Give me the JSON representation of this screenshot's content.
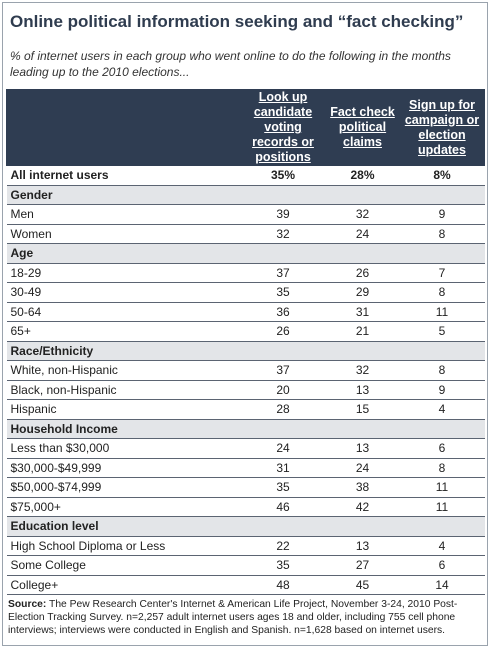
{
  "title": "Online political information seeking and “fact checking”",
  "subtitle": "% of internet users in each group who went online to do the following in the months leading up to the 2010 elections...",
  "columns": [
    "Look up candidate voting records or positions",
    "Fact check political claims",
    "Sign up for campaign or election updates"
  ],
  "all_row": {
    "label": "All internet users",
    "values": [
      "35%",
      "28%",
      "8%"
    ]
  },
  "sections": [
    {
      "heading": "Gender",
      "rows": [
        {
          "label": "Men",
          "values": [
            "39",
            "32",
            "9"
          ]
        },
        {
          "label": "Women",
          "values": [
            "32",
            "24",
            "8"
          ]
        }
      ]
    },
    {
      "heading": "Age",
      "rows": [
        {
          "label": "18-29",
          "values": [
            "37",
            "26",
            "7"
          ]
        },
        {
          "label": "30-49",
          "values": [
            "35",
            "29",
            "8"
          ]
        },
        {
          "label": "50-64",
          "values": [
            "36",
            "31",
            "11"
          ]
        },
        {
          "label": "65+",
          "values": [
            "26",
            "21",
            "5"
          ]
        }
      ]
    },
    {
      "heading": "Race/Ethnicity",
      "rows": [
        {
          "label": "White, non-Hispanic",
          "values": [
            "37",
            "32",
            "8"
          ]
        },
        {
          "label": "Black, non-Hispanic",
          "values": [
            "20",
            "13",
            "9"
          ]
        },
        {
          "label": "Hispanic",
          "values": [
            "28",
            "15",
            "4"
          ]
        }
      ]
    },
    {
      "heading": "Household Income",
      "rows": [
        {
          "label": "Less than $30,000",
          "values": [
            "24",
            "13",
            "6"
          ]
        },
        {
          "label": "$30,000-$49,999",
          "values": [
            "31",
            "24",
            "8"
          ]
        },
        {
          "label": "$50,000-$74,999",
          "values": [
            "35",
            "38",
            "11"
          ]
        },
        {
          "label": "$75,000+",
          "values": [
            "46",
            "42",
            "11"
          ]
        }
      ]
    },
    {
      "heading": "Education level",
      "rows": [
        {
          "label": "High School Diploma or Less",
          "values": [
            "22",
            "13",
            "4"
          ]
        },
        {
          "label": "Some College",
          "values": [
            "35",
            "27",
            "6"
          ]
        },
        {
          "label": "College+",
          "values": [
            "48",
            "45",
            "14"
          ]
        }
      ]
    }
  ],
  "source": {
    "label": "Source:",
    "text": "The Pew Research Center's Internet & American Life Project, November 3-24, 2010 Post-Election Tracking Survey. n=2,257 adult internet users ages 18 and older, including 755 cell phone interviews; interviews were conducted in English and Spanish. n=1,628 based on internet users."
  }
}
